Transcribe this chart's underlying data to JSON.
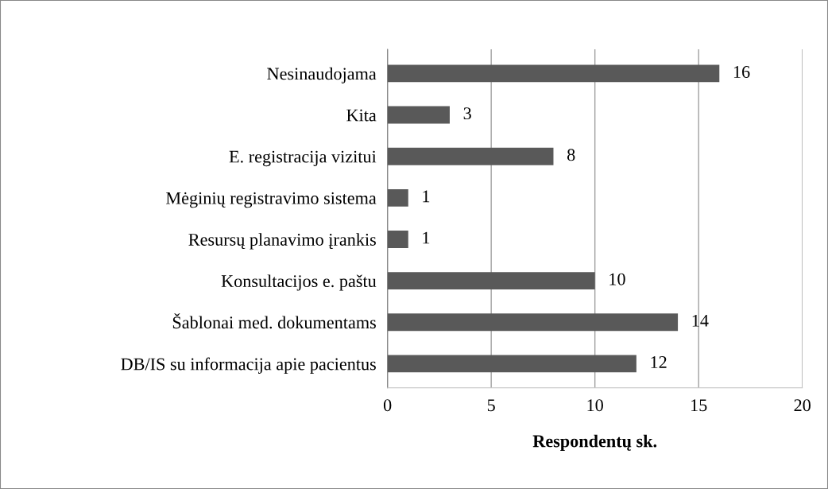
{
  "chart_data": {
    "type": "bar",
    "orientation": "horizontal",
    "xlabel": "Respondentų sk.",
    "categories": [
      "Nesinaudojama",
      "Kita",
      "E. registracija vizitui",
      "Mėginių registravimo sistema",
      "Resursų planavimo įrankis",
      "Konsultacijos e. paštu",
      "Šablonai med. dokumentams",
      "DB/IS su informacija apie pacientus"
    ],
    "values": [
      16,
      3,
      8,
      1,
      1,
      10,
      14,
      12
    ],
    "color": "#595959",
    "xlim": [
      0,
      20
    ],
    "xticks": [
      0,
      5,
      10,
      15,
      20
    ],
    "grid": "x",
    "data_labels": true,
    "legend": false
  }
}
